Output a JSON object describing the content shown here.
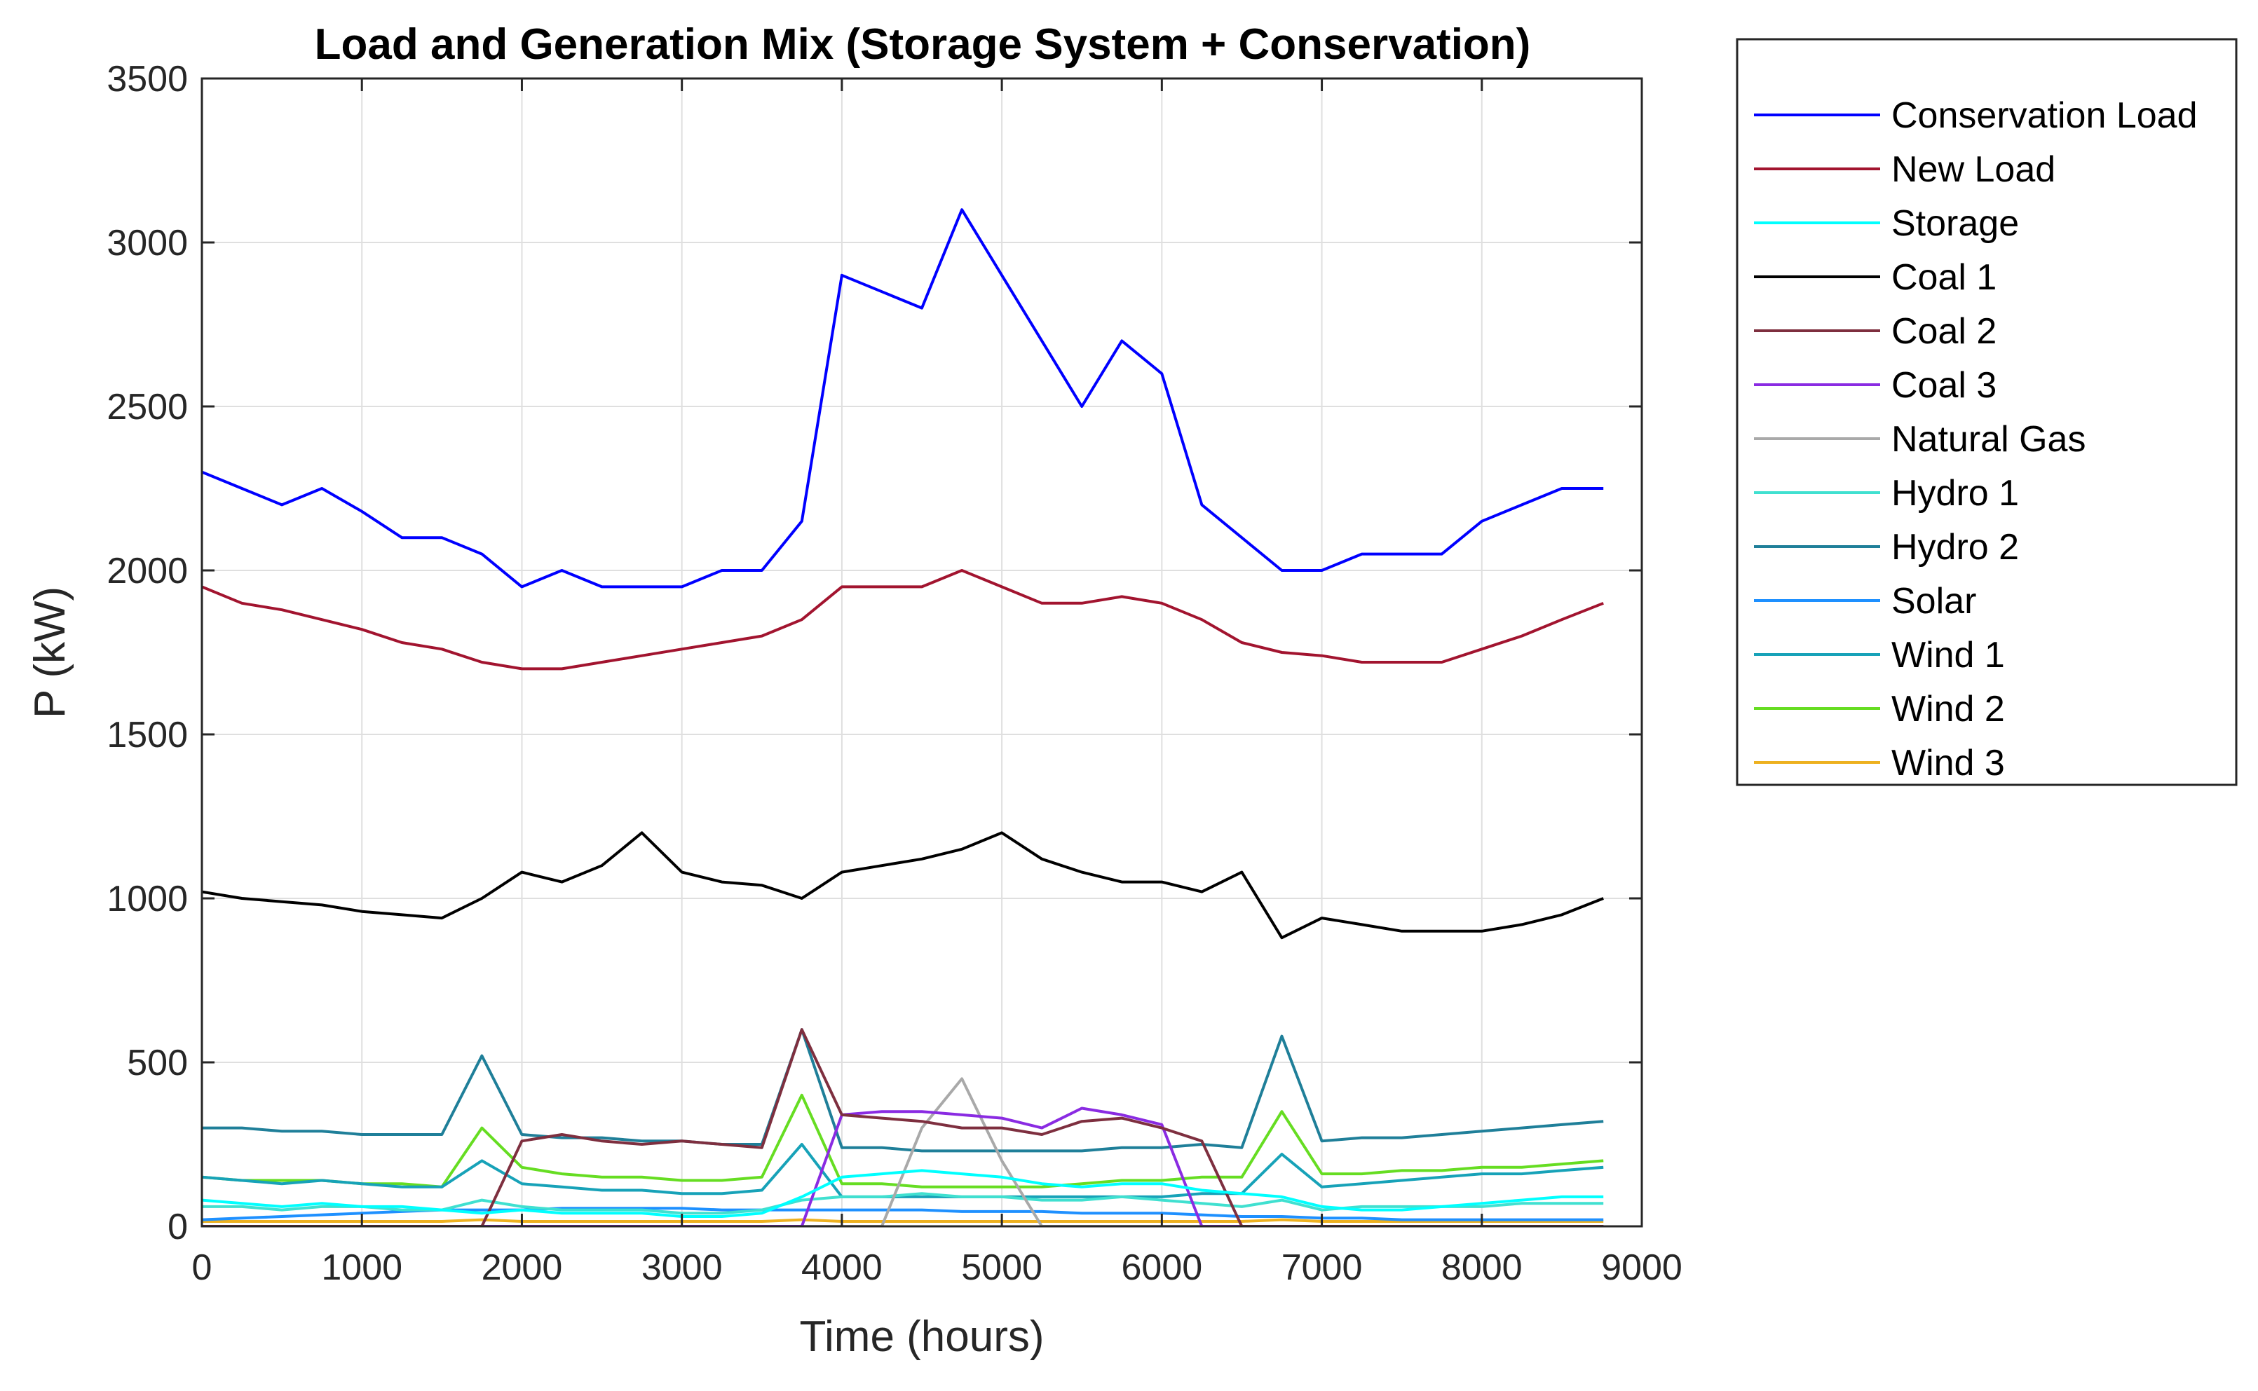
{
  "chart_data": {
    "type": "line",
    "title": "Load and Generation Mix (Storage System + Conservation)",
    "xlabel": "Time (hours)",
    "ylabel": "P (kW)",
    "xlim": [
      0,
      9000
    ],
    "ylim": [
      0,
      3500
    ],
    "grid": true,
    "legend_position": "outside-right",
    "x_ticks": [
      0,
      1000,
      2000,
      3000,
      4000,
      5000,
      6000,
      7000,
      8000,
      9000
    ],
    "y_ticks": [
      0,
      500,
      1000,
      1500,
      2000,
      2500,
      3000,
      3500
    ],
    "x_tick_labels": [
      "0",
      "1000",
      "2000",
      "3000",
      "4000",
      "5000",
      "6000",
      "7000",
      "8000",
      "9000"
    ],
    "y_tick_labels": [
      "0",
      "500",
      "1000",
      "1500",
      "2000",
      "2500",
      "3000",
      "3500"
    ],
    "x": [
      0,
      250,
      500,
      750,
      1000,
      1250,
      1500,
      1750,
      2000,
      2250,
      2500,
      2750,
      3000,
      3250,
      3500,
      3750,
      4000,
      4250,
      4500,
      4750,
      5000,
      5250,
      5500,
      5750,
      6000,
      6250,
      6500,
      6750,
      7000,
      7250,
      7500,
      7750,
      8000,
      8250,
      8500,
      8760
    ],
    "series": [
      {
        "name": "Conservation Load",
        "color": "#0000ff",
        "values": [
          2300,
          2250,
          2200,
          2250,
          2180,
          2100,
          2100,
          2050,
          1950,
          2000,
          1950,
          1950,
          1950,
          2000,
          2000,
          2150,
          2900,
          2850,
          2800,
          3100,
          2900,
          2700,
          2500,
          2700,
          2600,
          2200,
          2100,
          2000,
          2000,
          2050,
          2050,
          2050,
          2150,
          2200,
          2250,
          2250
        ]
      },
      {
        "name": "New Load",
        "color": "#a2142f",
        "values": [
          1950,
          1900,
          1880,
          1850,
          1820,
          1780,
          1760,
          1720,
          1700,
          1700,
          1720,
          1740,
          1760,
          1780,
          1800,
          1850,
          1950,
          1950,
          1950,
          2000,
          1950,
          1900,
          1900,
          1920,
          1900,
          1850,
          1780,
          1750,
          1740,
          1720,
          1720,
          1720,
          1760,
          1800,
          1850,
          1900
        ]
      },
      {
        "name": "Storage",
        "color": "#00ffff",
        "values": [
          80,
          70,
          60,
          70,
          60,
          60,
          50,
          40,
          50,
          40,
          40,
          40,
          30,
          30,
          40,
          90,
          150,
          160,
          170,
          160,
          150,
          130,
          120,
          130,
          130,
          110,
          100,
          90,
          60,
          50,
          50,
          60,
          70,
          80,
          90,
          90
        ]
      },
      {
        "name": "Coal 1",
        "color": "#000000",
        "values": [
          1020,
          1000,
          990,
          980,
          960,
          950,
          940,
          1000,
          1080,
          1050,
          1100,
          1200,
          1080,
          1050,
          1040,
          1000,
          1080,
          1100,
          1120,
          1150,
          1200,
          1120,
          1080,
          1050,
          1050,
          1020,
          1080,
          880,
          940,
          920,
          900,
          900,
          900,
          920,
          950,
          1000
        ]
      },
      {
        "name": "Coal 2",
        "color": "#7e2f3f",
        "values": [
          0,
          0,
          0,
          0,
          0,
          0,
          0,
          0,
          260,
          280,
          260,
          250,
          260,
          250,
          240,
          600,
          340,
          330,
          320,
          300,
          300,
          280,
          320,
          330,
          300,
          260,
          0,
          0,
          0,
          0,
          0,
          0,
          0,
          0,
          0,
          0
        ]
      },
      {
        "name": "Coal 3",
        "color": "#8a2be2",
        "values": [
          0,
          0,
          0,
          0,
          0,
          0,
          0,
          0,
          0,
          0,
          0,
          0,
          0,
          0,
          0,
          0,
          340,
          350,
          350,
          340,
          330,
          300,
          360,
          340,
          310,
          0,
          0,
          0,
          0,
          0,
          0,
          0,
          0,
          0,
          0,
          0
        ]
      },
      {
        "name": "Natural Gas",
        "color": "#a9a9a9",
        "values": [
          0,
          0,
          0,
          0,
          0,
          0,
          0,
          0,
          0,
          0,
          0,
          0,
          0,
          0,
          0,
          0,
          0,
          0,
          300,
          450,
          200,
          0,
          0,
          0,
          0,
          0,
          0,
          0,
          0,
          0,
          0,
          0,
          0,
          0,
          0,
          0
        ]
      },
      {
        "name": "Hydro 1",
        "color": "#40e0d0",
        "values": [
          60,
          60,
          50,
          60,
          60,
          50,
          50,
          80,
          60,
          50,
          50,
          50,
          40,
          40,
          50,
          80,
          90,
          90,
          100,
          90,
          90,
          80,
          80,
          90,
          80,
          70,
          60,
          80,
          50,
          60,
          60,
          60,
          60,
          70,
          70,
          70
        ]
      },
      {
        "name": "Hydro 2",
        "color": "#1f7f99",
        "values": [
          300,
          300,
          290,
          290,
          280,
          280,
          280,
          520,
          280,
          270,
          270,
          260,
          260,
          250,
          250,
          600,
          240,
          240,
          230,
          230,
          230,
          230,
          230,
          240,
          240,
          250,
          240,
          580,
          260,
          270,
          270,
          280,
          290,
          300,
          310,
          320
        ]
      },
      {
        "name": "Solar",
        "color": "#1e90ff",
        "values": [
          20,
          25,
          30,
          35,
          40,
          45,
          50,
          50,
          50,
          55,
          55,
          55,
          55,
          50,
          50,
          50,
          50,
          50,
          50,
          45,
          45,
          45,
          40,
          40,
          40,
          35,
          30,
          30,
          25,
          25,
          20,
          20,
          20,
          20,
          20,
          20
        ]
      },
      {
        "name": "Wind 1",
        "color": "#17a2b8",
        "values": [
          150,
          140,
          130,
          140,
          130,
          120,
          120,
          200,
          130,
          120,
          110,
          110,
          100,
          100,
          110,
          250,
          90,
          90,
          90,
          90,
          90,
          90,
          90,
          90,
          90,
          100,
          100,
          220,
          120,
          130,
          140,
          150,
          160,
          160,
          170,
          180
        ]
      },
      {
        "name": "Wind 2",
        "color": "#66dd22",
        "values": [
          150,
          140,
          140,
          140,
          130,
          130,
          120,
          300,
          180,
          160,
          150,
          150,
          140,
          140,
          150,
          400,
          130,
          130,
          120,
          120,
          120,
          120,
          130,
          140,
          140,
          150,
          150,
          350,
          160,
          160,
          170,
          170,
          180,
          180,
          190,
          200
        ]
      },
      {
        "name": "Wind 3",
        "color": "#edb120",
        "values": [
          15,
          15,
          15,
          15,
          15,
          15,
          15,
          20,
          15,
          15,
          15,
          15,
          15,
          15,
          15,
          20,
          15,
          15,
          15,
          15,
          15,
          15,
          15,
          15,
          15,
          15,
          15,
          20,
          15,
          15,
          15,
          15,
          15,
          15,
          15,
          15
        ]
      }
    ]
  }
}
